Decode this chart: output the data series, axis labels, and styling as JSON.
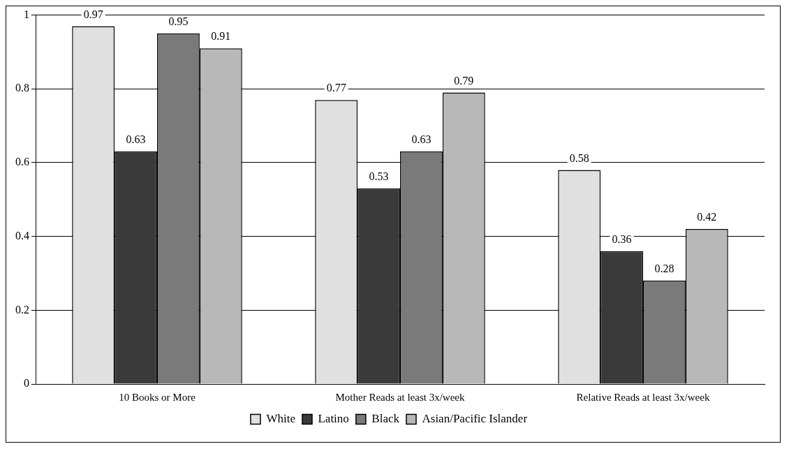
{
  "chart_data": {
    "type": "bar",
    "categories": [
      "10 Books or More",
      "Mother Reads at least 3x/week",
      "Relative Reads at least 3x/week"
    ],
    "series": [
      {
        "name": "White",
        "color": "#e0e0e0",
        "values": [
          0.97,
          0.77,
          0.58
        ]
      },
      {
        "name": "Latino",
        "color": "#3a3a3a",
        "values": [
          0.63,
          0.53,
          0.36
        ]
      },
      {
        "name": "Black",
        "color": "#7a7a7a",
        "values": [
          0.95,
          0.63,
          0.28
        ]
      },
      {
        "name": "Asian/Pacific Islander",
        "color": "#b8b8b8",
        "values": [
          0.91,
          0.79,
          0.42
        ]
      }
    ],
    "ylim": [
      0,
      1
    ],
    "yticks": [
      0,
      0.2,
      0.4,
      0.6,
      0.8,
      1
    ],
    "grid": "y",
    "legend": "bottom",
    "data_labels": true
  }
}
